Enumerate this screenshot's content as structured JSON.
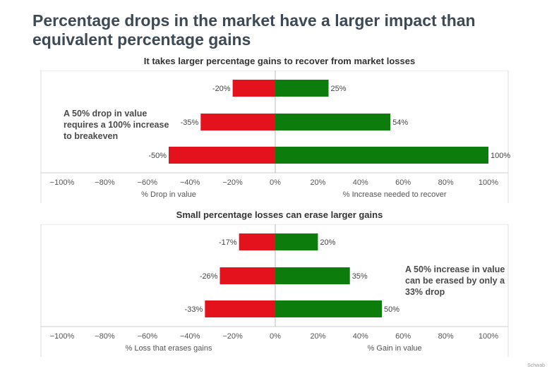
{
  "title": "Percentage drops in the market have a larger impact than equivalent percentage gains",
  "watermark": "Schwab",
  "chart_data": [
    {
      "type": "bar",
      "orientation": "horizontal-diverging",
      "title": "It takes larger percentage gains to recover from market losses",
      "xlabel_left": "% Drop in value",
      "xlabel_right": "% Increase needed to recover",
      "xlim": [
        -100,
        100
      ],
      "ticks": [
        "−100%",
        "−80%",
        "−60%",
        "−40%",
        "−20%",
        "0%",
        "20%",
        "40%",
        "60%",
        "80%",
        "100%"
      ],
      "series": [
        {
          "name": "",
          "color": "#e3121c",
          "values": [
            -20,
            -35,
            -50
          ],
          "labels": [
            "-20%",
            "-35%",
            "-50%"
          ]
        },
        {
          "name": "",
          "color": "#0c7d0c",
          "values": [
            25,
            54,
            100
          ],
          "labels": [
            "25%",
            "54%",
            "100%"
          ]
        }
      ],
      "annotation": "A 50% drop in value requires a 100% increase to breakeven",
      "grid": false
    },
    {
      "type": "bar",
      "orientation": "horizontal-diverging",
      "title": "Small percentage losses can erase larger gains",
      "xlabel_left": "% Loss that erases gains",
      "xlabel_right": "% Gain in value",
      "xlim": [
        -100,
        100
      ],
      "ticks": [
        "−100%",
        "−80%",
        "−60%",
        "−40%",
        "−20%",
        "0%",
        "20%",
        "40%",
        "60%",
        "80%",
        "100%"
      ],
      "series": [
        {
          "name": "",
          "color": "#e3121c",
          "values": [
            -17,
            -26,
            -33
          ],
          "labels": [
            "-17%",
            "-26%",
            "-33%"
          ]
        },
        {
          "name": "",
          "color": "#0c7d0c",
          "values": [
            20,
            35,
            50
          ],
          "labels": [
            "20%",
            "35%",
            "50%"
          ]
        }
      ],
      "annotation": "A 50% increase in value can be erased by only a 33% drop",
      "grid": false
    }
  ]
}
